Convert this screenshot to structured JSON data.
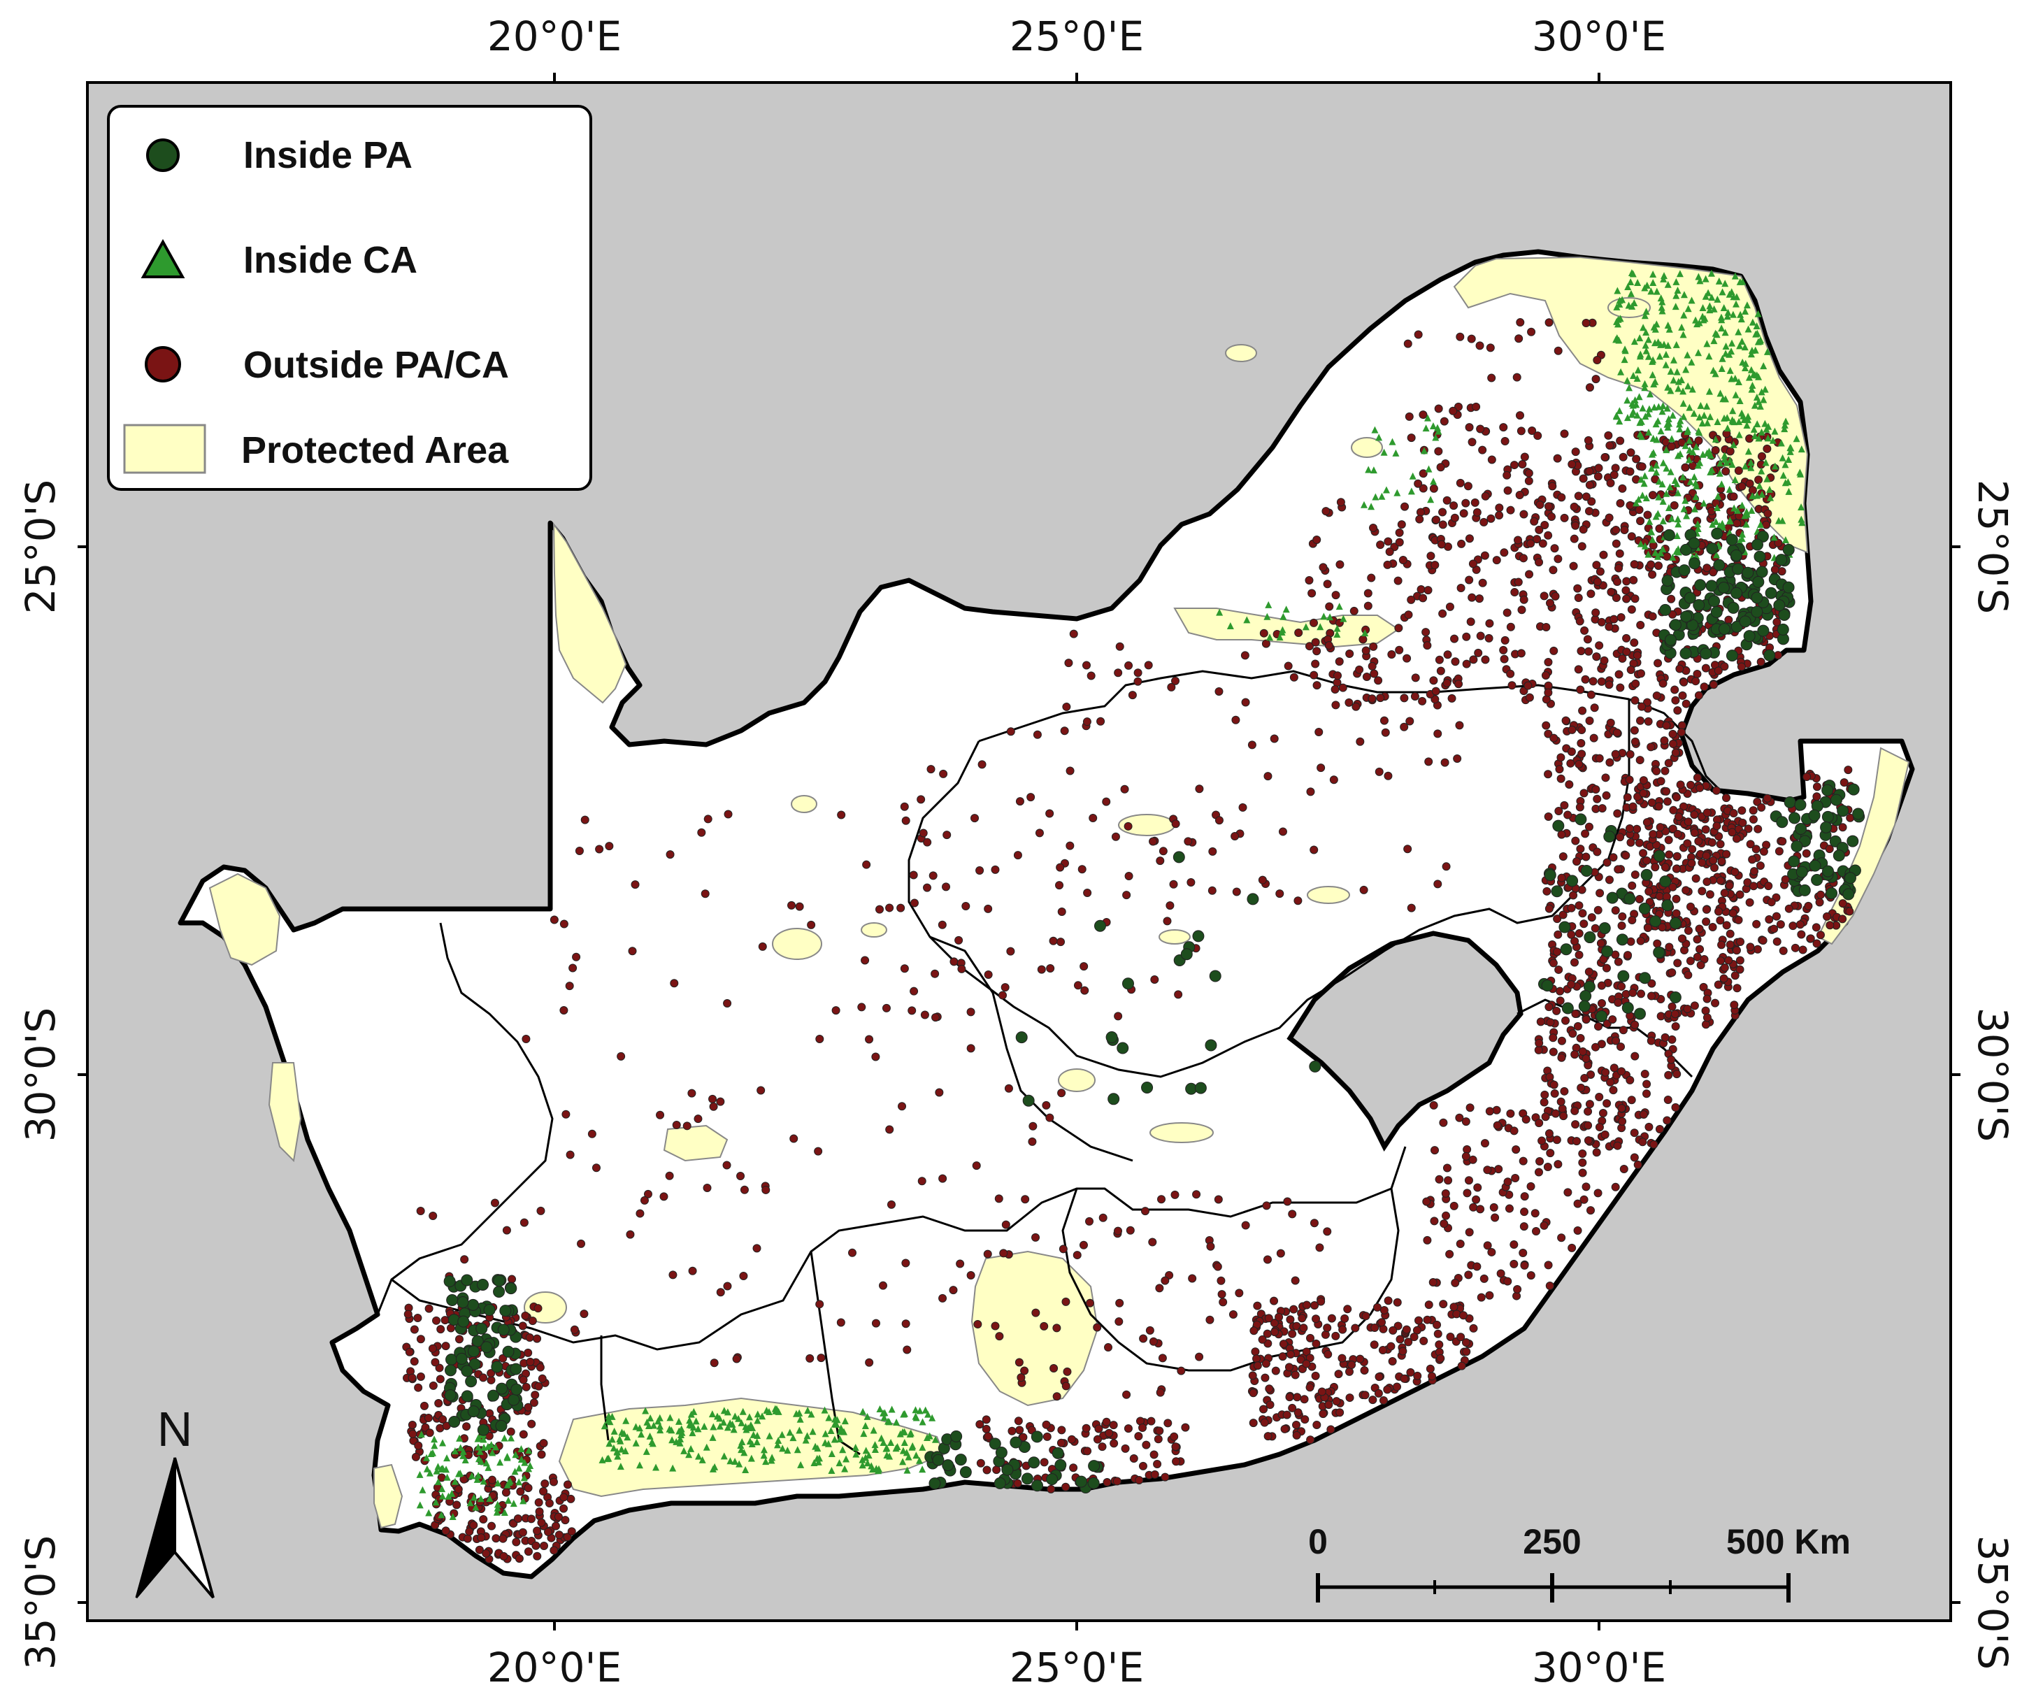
{
  "map": {
    "colors": {
      "sea": "#c8c8c8",
      "land": "#ffffff",
      "protected": "#ffffc4",
      "inside_pa": "#1d4d1d",
      "inside_ca": "#2e9a2e",
      "outside": "#7a1414",
      "border": "#000000"
    },
    "top_ticks": [
      "20°0'E",
      "25°0'E",
      "30°0'E"
    ],
    "bottom_ticks": [
      "20°0'E",
      "25°0'E",
      "30°0'E"
    ],
    "left_ticks": [
      "25°0'S",
      "30°0'S",
      "35°0'S"
    ],
    "right_ticks": [
      "25°0'S",
      "30°0'S",
      "35°0'S"
    ]
  },
  "legend": {
    "items": [
      {
        "label": "Inside PA",
        "symbol": "circle-green"
      },
      {
        "label": "Inside CA",
        "symbol": "triangle-green"
      },
      {
        "label": "Outside PA/CA",
        "symbol": "circle-red"
      },
      {
        "label": "Protected Area",
        "symbol": "yellow-rect"
      }
    ]
  },
  "north_arrow": {
    "label": "N"
  },
  "scale_bar": {
    "labels": [
      "0",
      "250",
      "500 Km"
    ]
  }
}
